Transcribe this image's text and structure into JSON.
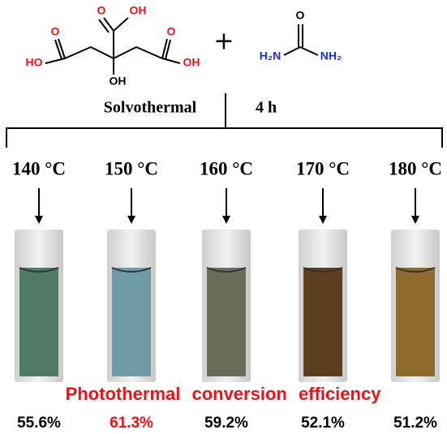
{
  "reactants": {
    "citric_acid": {
      "top_o": "O",
      "top_oh": "OH",
      "left_o": "O",
      "left_ho": "HO",
      "right_o": "O",
      "right_oh": "OH",
      "center_oh": "OH"
    },
    "plus": "+",
    "urea": {
      "o": "O",
      "left_n": "H₂N",
      "right_n": "NH₂"
    }
  },
  "conditions": {
    "method": "Solvothermal",
    "time": "4 h"
  },
  "samples": [
    {
      "temperature": "140 °C",
      "efficiency": "55.6%"
    },
    {
      "temperature": "150 °C",
      "efficiency": "61.3%"
    },
    {
      "temperature": "160 °C",
      "efficiency": "59.2%"
    },
    {
      "temperature": "170 °C",
      "efficiency": "52.1%"
    },
    {
      "temperature": "180 °C",
      "efficiency": "51.2%"
    }
  ],
  "caption": "Photothermal conversion efficiency"
}
